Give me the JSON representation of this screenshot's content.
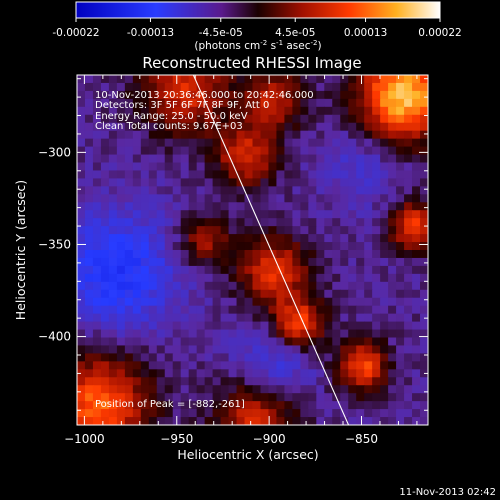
{
  "colorbar": {
    "tick_labels": [
      "-0.00022",
      "-0.00013",
      "-4.5e-05",
      "4.5e-05",
      "0.00013",
      "0.00022"
    ],
    "tick_values": [
      -0.00022,
      -0.00013,
      -4.5e-05,
      4.5e-05,
      0.00013,
      0.00022
    ],
    "units_label": "(photons cm",
    "units_sup1": "-2",
    "units_mid": " s",
    "units_sup2": "-1",
    "units_tail": " asec",
    "units_sup3": "-2",
    "units_close": ")"
  },
  "image": {
    "title": "Reconstructed RHESSI Image",
    "info_lines": [
      "10-Nov-2013 20:36:46.000 to 20:42:46.000",
      "Detectors: 3F 5F 6F 7F 8F 9F, Att 0",
      "Energy Range: 25.0 - 50.0 keV",
      "Clean     Total counts: 9.67E+03"
    ],
    "peak_text": "Position of Peak = [-882,-261]",
    "x_ticks": [
      {
        "value": -1000,
        "label": "−1000"
      },
      {
        "value": -950,
        "label": "−950"
      },
      {
        "value": -900,
        "label": "−900"
      },
      {
        "value": -850,
        "label": "−850"
      }
    ],
    "y_ticks": [
      {
        "value": -300,
        "label": "−300"
      },
      {
        "value": -350,
        "label": "−350"
      },
      {
        "value": -400,
        "label": "−400"
      }
    ],
    "xlabel": "Heliocentric X (arcsec)",
    "ylabel": "Heliocentric Y (arcsec)",
    "xlim": [
      -1004,
      -814
    ],
    "ylim": [
      -448,
      -258
    ],
    "limb_line": [
      [
        -941,
        -258
      ],
      [
        -857,
        -448
      ]
    ]
  },
  "footer": {
    "timestamp": "11-Nov-2013 02:42"
  },
  "colors": {
    "background": "#000000",
    "foreground": "#ffffff"
  }
}
